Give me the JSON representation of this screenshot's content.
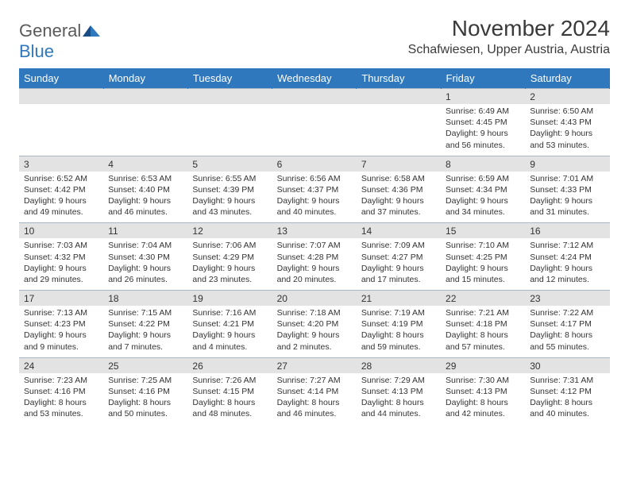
{
  "logo": {
    "part1": "General",
    "part2": "Blue"
  },
  "title": "November 2024",
  "location": "Schafwiesen, Upper Austria, Austria",
  "colors": {
    "header_bg": "#2f78bd",
    "header_text": "#ffffff",
    "daynum_bg": "#e3e3e3",
    "border": "#a9b6c4",
    "text": "#333333",
    "logo_gray": "#5a5a5a",
    "logo_blue": "#2f78bd"
  },
  "dayNames": [
    "Sunday",
    "Monday",
    "Tuesday",
    "Wednesday",
    "Thursday",
    "Friday",
    "Saturday"
  ],
  "weeks": [
    [
      {
        "n": "",
        "sr": "",
        "ss": "",
        "dl1": "",
        "dl2": ""
      },
      {
        "n": "",
        "sr": "",
        "ss": "",
        "dl1": "",
        "dl2": ""
      },
      {
        "n": "",
        "sr": "",
        "ss": "",
        "dl1": "",
        "dl2": ""
      },
      {
        "n": "",
        "sr": "",
        "ss": "",
        "dl1": "",
        "dl2": ""
      },
      {
        "n": "",
        "sr": "",
        "ss": "",
        "dl1": "",
        "dl2": ""
      },
      {
        "n": "1",
        "sr": "Sunrise: 6:49 AM",
        "ss": "Sunset: 4:45 PM",
        "dl1": "Daylight: 9 hours",
        "dl2": "and 56 minutes."
      },
      {
        "n": "2",
        "sr": "Sunrise: 6:50 AM",
        "ss": "Sunset: 4:43 PM",
        "dl1": "Daylight: 9 hours",
        "dl2": "and 53 minutes."
      }
    ],
    [
      {
        "n": "3",
        "sr": "Sunrise: 6:52 AM",
        "ss": "Sunset: 4:42 PM",
        "dl1": "Daylight: 9 hours",
        "dl2": "and 49 minutes."
      },
      {
        "n": "4",
        "sr": "Sunrise: 6:53 AM",
        "ss": "Sunset: 4:40 PM",
        "dl1": "Daylight: 9 hours",
        "dl2": "and 46 minutes."
      },
      {
        "n": "5",
        "sr": "Sunrise: 6:55 AM",
        "ss": "Sunset: 4:39 PM",
        "dl1": "Daylight: 9 hours",
        "dl2": "and 43 minutes."
      },
      {
        "n": "6",
        "sr": "Sunrise: 6:56 AM",
        "ss": "Sunset: 4:37 PM",
        "dl1": "Daylight: 9 hours",
        "dl2": "and 40 minutes."
      },
      {
        "n": "7",
        "sr": "Sunrise: 6:58 AM",
        "ss": "Sunset: 4:36 PM",
        "dl1": "Daylight: 9 hours",
        "dl2": "and 37 minutes."
      },
      {
        "n": "8",
        "sr": "Sunrise: 6:59 AM",
        "ss": "Sunset: 4:34 PM",
        "dl1": "Daylight: 9 hours",
        "dl2": "and 34 minutes."
      },
      {
        "n": "9",
        "sr": "Sunrise: 7:01 AM",
        "ss": "Sunset: 4:33 PM",
        "dl1": "Daylight: 9 hours",
        "dl2": "and 31 minutes."
      }
    ],
    [
      {
        "n": "10",
        "sr": "Sunrise: 7:03 AM",
        "ss": "Sunset: 4:32 PM",
        "dl1": "Daylight: 9 hours",
        "dl2": "and 29 minutes."
      },
      {
        "n": "11",
        "sr": "Sunrise: 7:04 AM",
        "ss": "Sunset: 4:30 PM",
        "dl1": "Daylight: 9 hours",
        "dl2": "and 26 minutes."
      },
      {
        "n": "12",
        "sr": "Sunrise: 7:06 AM",
        "ss": "Sunset: 4:29 PM",
        "dl1": "Daylight: 9 hours",
        "dl2": "and 23 minutes."
      },
      {
        "n": "13",
        "sr": "Sunrise: 7:07 AM",
        "ss": "Sunset: 4:28 PM",
        "dl1": "Daylight: 9 hours",
        "dl2": "and 20 minutes."
      },
      {
        "n": "14",
        "sr": "Sunrise: 7:09 AM",
        "ss": "Sunset: 4:27 PM",
        "dl1": "Daylight: 9 hours",
        "dl2": "and 17 minutes."
      },
      {
        "n": "15",
        "sr": "Sunrise: 7:10 AM",
        "ss": "Sunset: 4:25 PM",
        "dl1": "Daylight: 9 hours",
        "dl2": "and 15 minutes."
      },
      {
        "n": "16",
        "sr": "Sunrise: 7:12 AM",
        "ss": "Sunset: 4:24 PM",
        "dl1": "Daylight: 9 hours",
        "dl2": "and 12 minutes."
      }
    ],
    [
      {
        "n": "17",
        "sr": "Sunrise: 7:13 AM",
        "ss": "Sunset: 4:23 PM",
        "dl1": "Daylight: 9 hours",
        "dl2": "and 9 minutes."
      },
      {
        "n": "18",
        "sr": "Sunrise: 7:15 AM",
        "ss": "Sunset: 4:22 PM",
        "dl1": "Daylight: 9 hours",
        "dl2": "and 7 minutes."
      },
      {
        "n": "19",
        "sr": "Sunrise: 7:16 AM",
        "ss": "Sunset: 4:21 PM",
        "dl1": "Daylight: 9 hours",
        "dl2": "and 4 minutes."
      },
      {
        "n": "20",
        "sr": "Sunrise: 7:18 AM",
        "ss": "Sunset: 4:20 PM",
        "dl1": "Daylight: 9 hours",
        "dl2": "and 2 minutes."
      },
      {
        "n": "21",
        "sr": "Sunrise: 7:19 AM",
        "ss": "Sunset: 4:19 PM",
        "dl1": "Daylight: 8 hours",
        "dl2": "and 59 minutes."
      },
      {
        "n": "22",
        "sr": "Sunrise: 7:21 AM",
        "ss": "Sunset: 4:18 PM",
        "dl1": "Daylight: 8 hours",
        "dl2": "and 57 minutes."
      },
      {
        "n": "23",
        "sr": "Sunrise: 7:22 AM",
        "ss": "Sunset: 4:17 PM",
        "dl1": "Daylight: 8 hours",
        "dl2": "and 55 minutes."
      }
    ],
    [
      {
        "n": "24",
        "sr": "Sunrise: 7:23 AM",
        "ss": "Sunset: 4:16 PM",
        "dl1": "Daylight: 8 hours",
        "dl2": "and 53 minutes."
      },
      {
        "n": "25",
        "sr": "Sunrise: 7:25 AM",
        "ss": "Sunset: 4:16 PM",
        "dl1": "Daylight: 8 hours",
        "dl2": "and 50 minutes."
      },
      {
        "n": "26",
        "sr": "Sunrise: 7:26 AM",
        "ss": "Sunset: 4:15 PM",
        "dl1": "Daylight: 8 hours",
        "dl2": "and 48 minutes."
      },
      {
        "n": "27",
        "sr": "Sunrise: 7:27 AM",
        "ss": "Sunset: 4:14 PM",
        "dl1": "Daylight: 8 hours",
        "dl2": "and 46 minutes."
      },
      {
        "n": "28",
        "sr": "Sunrise: 7:29 AM",
        "ss": "Sunset: 4:13 PM",
        "dl1": "Daylight: 8 hours",
        "dl2": "and 44 minutes."
      },
      {
        "n": "29",
        "sr": "Sunrise: 7:30 AM",
        "ss": "Sunset: 4:13 PM",
        "dl1": "Daylight: 8 hours",
        "dl2": "and 42 minutes."
      },
      {
        "n": "30",
        "sr": "Sunrise: 7:31 AM",
        "ss": "Sunset: 4:12 PM",
        "dl1": "Daylight: 8 hours",
        "dl2": "and 40 minutes."
      }
    ]
  ]
}
